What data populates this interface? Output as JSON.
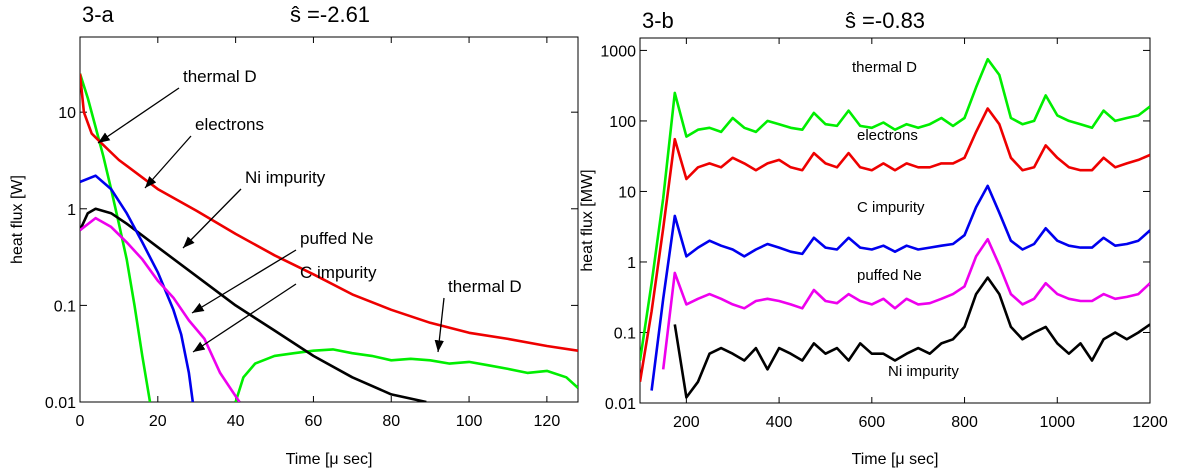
{
  "chart_data": [
    {
      "type": "line",
      "label": "3-a",
      "title": "ŝ =-2.61",
      "x_label": "Time [μ sec]",
      "y_label": "heat flux [W]",
      "log_y": true,
      "xlim": [
        0,
        128
      ],
      "xticks": [
        0,
        20,
        40,
        60,
        80,
        100,
        120
      ],
      "ylim": [
        0.01,
        60
      ],
      "yticks": [
        0.01,
        0.1,
        1,
        10
      ],
      "series": [
        {
          "name": "thermal D",
          "color": "#00ee00",
          "x": [
            0,
            2,
            4,
            6,
            8,
            10,
            12,
            14,
            16,
            18,
            30,
            40,
            42,
            45,
            50,
            55,
            60,
            65,
            70,
            75,
            80,
            85,
            90,
            95,
            100,
            105,
            110,
            115,
            120,
            125,
            128
          ],
          "values": [
            25,
            14,
            7,
            3.5,
            1.6,
            0.7,
            0.3,
            0.1,
            0.03,
            0.01,
            null,
            0.01,
            0.018,
            0.025,
            0.03,
            0.032,
            0.034,
            0.035,
            0.032,
            0.03,
            0.027,
            0.028,
            0.027,
            0.025,
            0.026,
            0.024,
            0.022,
            0.02,
            0.021,
            0.018,
            0.014
          ]
        },
        {
          "name": "electrons",
          "color": "#ee0000",
          "x": [
            0,
            1,
            3,
            5,
            10,
            20,
            30,
            40,
            50,
            60,
            70,
            80,
            90,
            100,
            110,
            120,
            128
          ],
          "values": [
            25,
            10,
            6,
            5,
            3.2,
            1.6,
            0.95,
            0.55,
            0.33,
            0.21,
            0.13,
            0.09,
            0.066,
            0.052,
            0.045,
            0.038,
            0.034
          ]
        },
        {
          "name": "Ni impurity",
          "color": "#000000",
          "x": [
            0,
            2,
            4,
            8,
            12,
            20,
            30,
            40,
            50,
            60,
            70,
            80,
            89
          ],
          "values": [
            0.6,
            0.9,
            1.0,
            0.9,
            0.7,
            0.4,
            0.2,
            0.1,
            0.055,
            0.03,
            0.018,
            0.012,
            0.01
          ]
        },
        {
          "name": "puffed Ne",
          "color": "#0000ee",
          "x": [
            0,
            4,
            8,
            12,
            16,
            20,
            24,
            26,
            28,
            29
          ],
          "values": [
            1.9,
            2.2,
            1.6,
            0.9,
            0.45,
            0.22,
            0.09,
            0.05,
            0.02,
            0.01
          ]
        },
        {
          "name": "C impurity",
          "color": "#ee00ee",
          "x": [
            0,
            4,
            8,
            12,
            16,
            20,
            24,
            28,
            32,
            36,
            41
          ],
          "values": [
            0.6,
            0.8,
            0.65,
            0.45,
            0.3,
            0.18,
            0.12,
            0.07,
            0.045,
            0.02,
            0.01
          ]
        }
      ]
    },
    {
      "type": "line",
      "label": "3-b",
      "title": "ŝ =-0.83",
      "x_label": "Time [μ sec]",
      "y_label": "heat flux [MW]",
      "log_y": true,
      "xlim": [
        100,
        1200
      ],
      "xticks": [
        200,
        400,
        600,
        800,
        1000,
        1200
      ],
      "ylim": [
        0.01,
        1500
      ],
      "yticks": [
        0.01,
        0.1,
        1,
        10,
        100,
        1000
      ],
      "x": [
        100,
        125,
        150,
        175,
        200,
        225,
        250,
        275,
        300,
        325,
        350,
        375,
        400,
        425,
        450,
        475,
        500,
        525,
        550,
        575,
        600,
        625,
        650,
        675,
        700,
        725,
        750,
        775,
        800,
        825,
        850,
        875,
        900,
        925,
        950,
        975,
        1000,
        1025,
        1050,
        1075,
        1100,
        1125,
        1150,
        1175,
        1200
      ],
      "series": [
        {
          "name": "thermal D",
          "color": "#00ee00",
          "values": [
            0.04,
            0.5,
            8,
            250,
            60,
            75,
            80,
            70,
            110,
            80,
            70,
            100,
            90,
            80,
            75,
            130,
            90,
            85,
            140,
            85,
            80,
            95,
            75,
            90,
            80,
            90,
            110,
            85,
            110,
            300,
            750,
            450,
            110,
            90,
            100,
            230,
            120,
            100,
            90,
            80,
            140,
            100,
            110,
            120,
            160
          ]
        },
        {
          "name": "electrons",
          "color": "#ee0000",
          "values": [
            0.02,
            0.2,
            3,
            55,
            15,
            22,
            25,
            22,
            30,
            25,
            20,
            25,
            28,
            22,
            20,
            35,
            25,
            22,
            35,
            22,
            20,
            25,
            20,
            25,
            22,
            22,
            25,
            25,
            30,
            70,
            150,
            90,
            30,
            20,
            22,
            45,
            30,
            22,
            20,
            20,
            30,
            22,
            25,
            28,
            33
          ]
        },
        {
          "name": "C impurity",
          "color": "#0000ee",
          "values": [
            null,
            0.015,
            0.3,
            4.5,
            1.2,
            1.6,
            2,
            1.7,
            1.5,
            1.2,
            1.5,
            1.8,
            1.6,
            1.4,
            1.3,
            2.2,
            1.6,
            1.5,
            2.2,
            1.6,
            1.5,
            1.7,
            1.4,
            1.7,
            1.5,
            1.6,
            1.7,
            1.8,
            2.4,
            6,
            12,
            5,
            2,
            1.5,
            1.8,
            3,
            2,
            1.7,
            1.6,
            1.6,
            2.2,
            1.7,
            1.8,
            2,
            2.8
          ]
        },
        {
          "name": "puffed Ne",
          "color": "#ee00ee",
          "values": [
            null,
            null,
            0.03,
            0.7,
            0.25,
            0.3,
            0.35,
            0.3,
            0.25,
            0.22,
            0.28,
            0.3,
            0.28,
            0.25,
            0.22,
            0.4,
            0.28,
            0.26,
            0.35,
            0.28,
            0.25,
            0.3,
            0.22,
            0.3,
            0.25,
            0.26,
            0.3,
            0.35,
            0.45,
            1.2,
            2.1,
            0.9,
            0.35,
            0.25,
            0.3,
            0.5,
            0.35,
            0.3,
            0.28,
            0.28,
            0.35,
            0.3,
            0.32,
            0.35,
            0.5
          ]
        },
        {
          "name": "Ni impurity",
          "color": "#000000",
          "values": [
            null,
            null,
            null,
            0.13,
            0.012,
            0.02,
            0.05,
            0.06,
            0.05,
            0.04,
            0.06,
            0.03,
            0.06,
            0.05,
            0.04,
            0.07,
            0.05,
            0.06,
            0.04,
            0.07,
            0.05,
            0.05,
            0.04,
            0.05,
            0.06,
            0.05,
            0.07,
            0.08,
            0.12,
            0.35,
            0.6,
            0.35,
            0.12,
            0.08,
            0.1,
            0.12,
            0.07,
            0.05,
            0.07,
            0.04,
            0.08,
            0.1,
            0.08,
            0.1,
            0.13
          ]
        }
      ]
    }
  ]
}
